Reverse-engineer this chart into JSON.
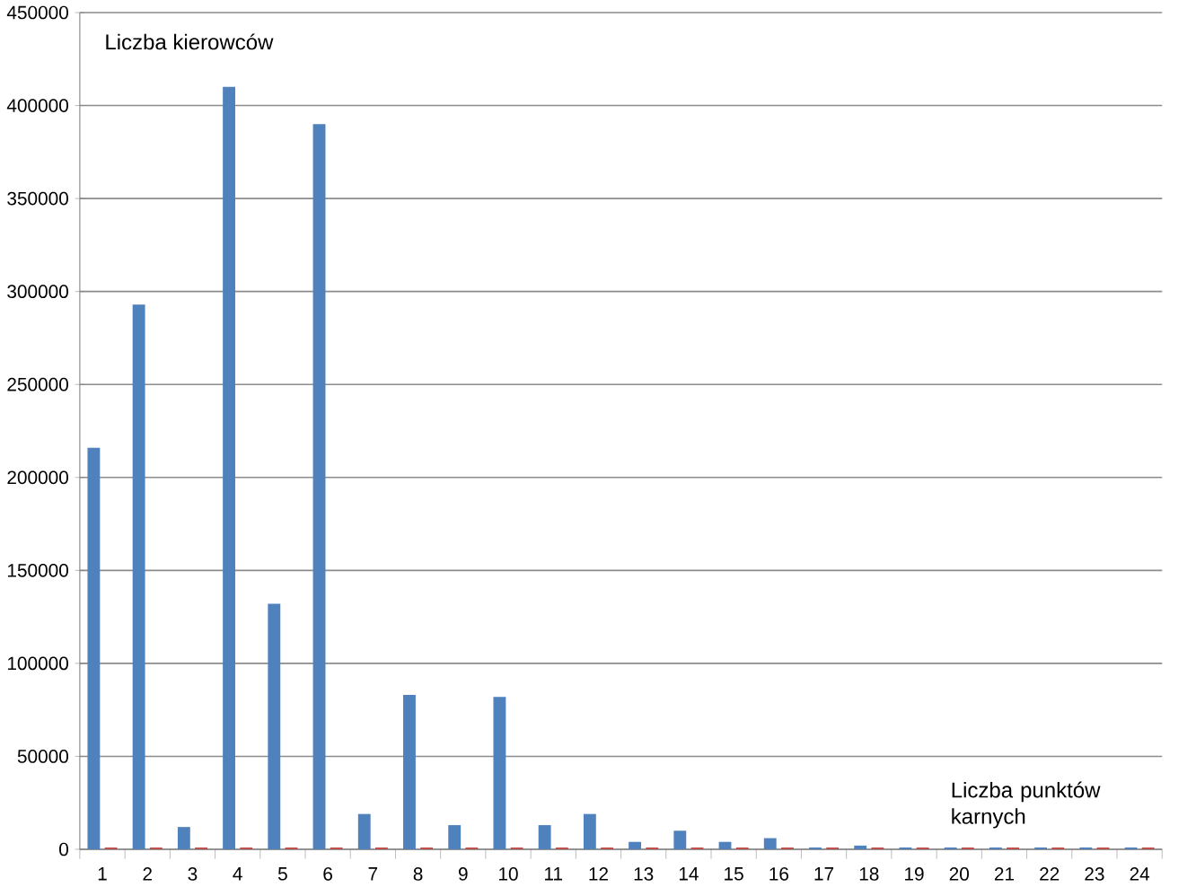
{
  "chart_data": {
    "type": "bar",
    "xlabel": "Liczba punktów karnych",
    "ylabel": "Liczba kierowców",
    "categories": [
      "1",
      "2",
      "3",
      "4",
      "5",
      "6",
      "7",
      "8",
      "9",
      "10",
      "11",
      "12",
      "13",
      "14",
      "15",
      "16",
      "17",
      "18",
      "19",
      "20",
      "21",
      "22",
      "23",
      "24"
    ],
    "series": [
      {
        "color": "#4f81bd",
        "values": [
          216000,
          293000,
          12000,
          410000,
          132000,
          390000,
          19000,
          83000,
          13000,
          82000,
          13000,
          19000,
          4000,
          10000,
          4000,
          6000,
          1000,
          2000,
          1000,
          1000,
          1000,
          1000,
          1000,
          1000
        ]
      },
      {
        "color": "#c0504d",
        "values": [
          1000,
          1000,
          1000,
          1000,
          1000,
          1000,
          1000,
          1000,
          1000,
          1000,
          1000,
          1000,
          1000,
          1000,
          1000,
          1000,
          1000,
          1000,
          1000,
          1000,
          1000,
          1000,
          1000,
          1000
        ]
      }
    ],
    "ylim": [
      0,
      450000
    ],
    "yticks": [
      0,
      50000,
      100000,
      150000,
      200000,
      250000,
      300000,
      350000,
      400000,
      450000
    ],
    "grid": "y"
  }
}
